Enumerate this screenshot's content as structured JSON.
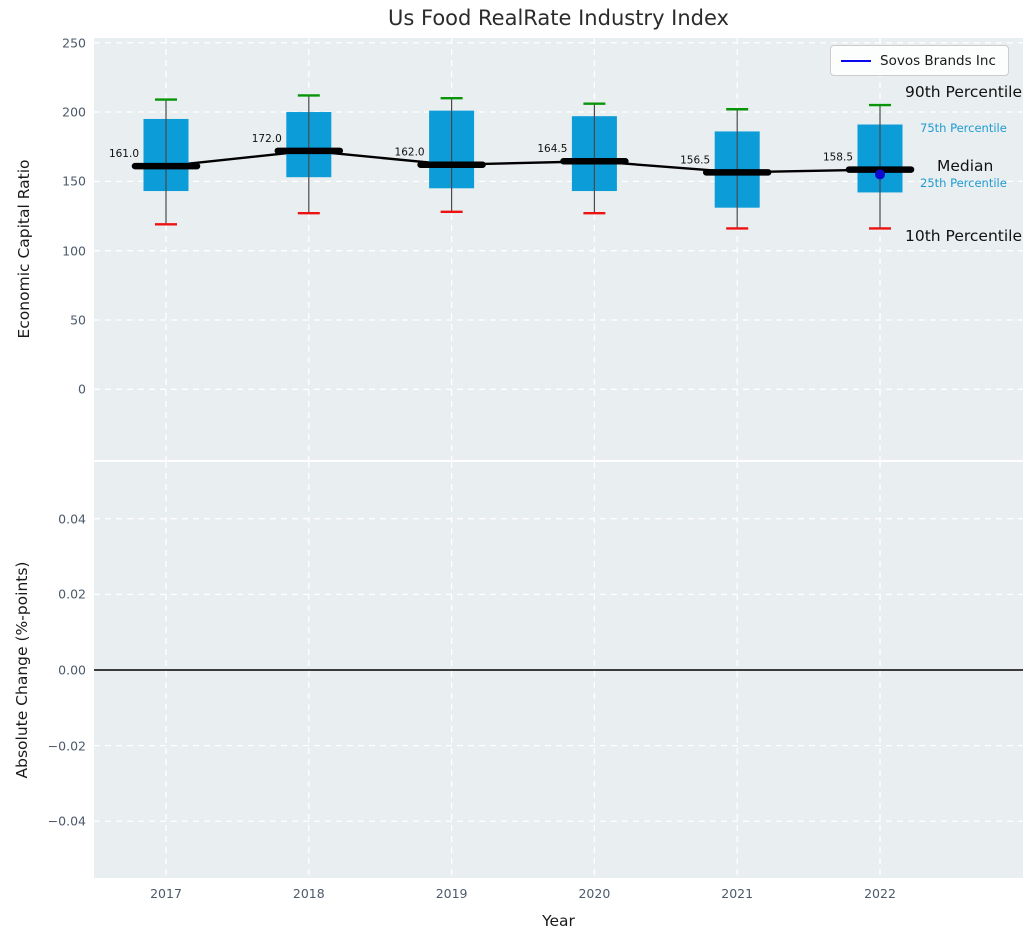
{
  "title": "Us Food RealRate Industry Index",
  "legend": {
    "label": "Sovos Brands Inc",
    "line_color": "#0808ee"
  },
  "annotations": {
    "p90": "90th Percentile",
    "p75": "75th Percentile",
    "median": "Median",
    "p25": "25th Percentile",
    "p10": "10th Percentile"
  },
  "colors": {
    "axes_background": "#e9eef0",
    "grid": "#ffffff",
    "box_fill": "#0c9cd8",
    "whisker": "#4a4a4a",
    "p90_cap": "#079407",
    "p10_cap": "#ee1111",
    "median_bar": "#000000",
    "trend_line": "#000000",
    "series_dot": "#0b0bd0",
    "tick_text": "#4d5a6a",
    "annotation_blue": "#1f9ad2"
  },
  "chart_data": [
    {
      "type": "boxplot",
      "title": "Us Food RealRate Industry Index",
      "xlabel": "Year",
      "ylabel": "Economic Capital Ratio",
      "categories": [
        "2017",
        "2018",
        "2019",
        "2020",
        "2021",
        "2022"
      ],
      "yticks": [
        "250",
        "200",
        "150",
        "100",
        "50",
        "0"
      ],
      "ytick_values": [
        250,
        200,
        150,
        100,
        50,
        0
      ],
      "ylim": [
        -51,
        253.4
      ],
      "grid": true,
      "legend_position": "upper right",
      "boxes": [
        {
          "year": "2017",
          "p10": 119,
          "p25": 143,
          "median": 161.0,
          "p75": 195,
          "p90": 209,
          "label": "161.0"
        },
        {
          "year": "2018",
          "p10": 127,
          "p25": 153,
          "median": 172.0,
          "p75": 200,
          "p90": 212,
          "label": "172.0"
        },
        {
          "year": "2019",
          "p10": 128,
          "p25": 145,
          "median": 162.0,
          "p75": 201,
          "p90": 210,
          "label": "162.0"
        },
        {
          "year": "2020",
          "p10": 127,
          "p25": 143,
          "median": 164.5,
          "p75": 197,
          "p90": 206,
          "label": "164.5"
        },
        {
          "year": "2021",
          "p10": 116,
          "p25": 131,
          "median": 156.5,
          "p75": 186,
          "p90": 202,
          "label": "156.5"
        },
        {
          "year": "2022",
          "p10": 116,
          "p25": 142,
          "median": 158.5,
          "p75": 191,
          "p90": 205,
          "label": "158.5"
        }
      ],
      "median_trend": [
        161.0,
        172.0,
        162.0,
        164.5,
        156.5,
        158.5
      ],
      "series": [
        {
          "name": "Sovos Brands Inc",
          "points": [
            {
              "x": "2022",
              "y": 155
            }
          ]
        }
      ]
    },
    {
      "type": "line",
      "xlabel": "Year",
      "ylabel": "Absolute Change (%-points)",
      "categories": [
        "2017",
        "2018",
        "2019",
        "2020",
        "2021",
        "2022"
      ],
      "yticks": [
        "0.04",
        "0.02",
        "0.00",
        "−0.02",
        "−0.04"
      ],
      "ytick_values": [
        0.04,
        0.02,
        0.0,
        -0.02,
        -0.04
      ],
      "ylim": [
        -0.055,
        0.055
      ],
      "grid": true,
      "zero_line": 0.0,
      "values": []
    }
  ]
}
